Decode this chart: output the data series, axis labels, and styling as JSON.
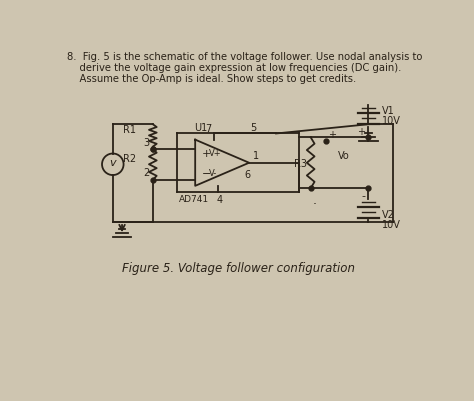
{
  "bg_color": "#cec5b0",
  "text_color": "#2a2218",
  "line_color": "#2a2218",
  "title_line1": "8.  Fig. 5 is the schematic of the voltage follower. Use nodal analysis to",
  "title_line2": "    derive the voltage gain expression at low frequencies (DC gain).",
  "title_line3": "    Assume the Op-Amp is ideal. Show steps to get credits.",
  "caption": "Figure 5. Voltage follower configuration",
  "opamp_label": "AD741",
  "u1_label": "U1",
  "r1_label": "R1",
  "r2_label": "R2",
  "r3_label": "R3",
  "v1_label": "V1",
  "v2_label": "V2",
  "v1_val": "10V",
  "v2_val": "10V",
  "vs_label": "v",
  "vplus_label": "V+",
  "vminus_label": "V-",
  "vo_label": "Vo",
  "node3": "3",
  "node2": "2",
  "node7": "7",
  "node5": "5",
  "node6": "6",
  "node1": "1",
  "node4": "4"
}
